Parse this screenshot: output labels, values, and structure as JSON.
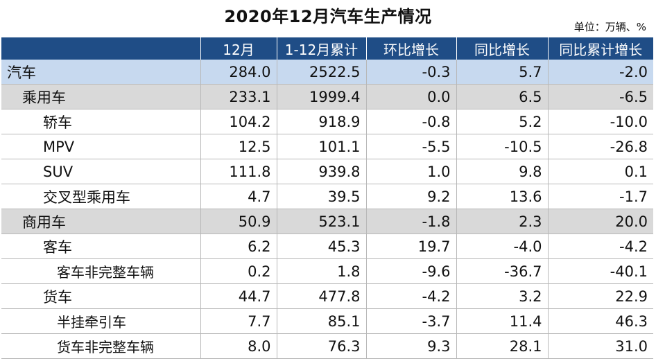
{
  "title": "2020年12月汽车生产情况",
  "unit": "单位：万辆、%",
  "headers": [
    "",
    "12月",
    "1-12月累计",
    "环比增长",
    "同比增长",
    "同比累计增长"
  ],
  "rows": [
    {
      "label": "汽车",
      "level": 0,
      "values": [
        "284.0",
        "2522.5",
        "-0.3",
        "5.7",
        "-2.0"
      ]
    },
    {
      "label": "乘用车",
      "level": 1,
      "values": [
        "233.1",
        "1999.4",
        "0.0",
        "6.5",
        "-6.5"
      ]
    },
    {
      "label": "轿车",
      "level": 2,
      "values": [
        "104.2",
        "918.9",
        "-0.8",
        "5.2",
        "-10.0"
      ]
    },
    {
      "label": "MPV",
      "level": 2,
      "values": [
        "12.5",
        "101.1",
        "-5.5",
        "-10.5",
        "-26.8"
      ]
    },
    {
      "label": "SUV",
      "level": 2,
      "values": [
        "111.8",
        "939.8",
        "1.0",
        "9.8",
        "0.1"
      ]
    },
    {
      "label": "交叉型乘用车",
      "level": 2,
      "values": [
        "4.7",
        "39.5",
        "9.2",
        "13.6",
        "-1.7"
      ]
    },
    {
      "label": "商用车",
      "level": 1,
      "values": [
        "50.9",
        "523.1",
        "-1.8",
        "2.3",
        "20.0"
      ]
    },
    {
      "label": "客车",
      "level": 2,
      "values": [
        "6.2",
        "45.3",
        "19.7",
        "-4.0",
        "-4.2"
      ]
    },
    {
      "label": "客车非完整车辆",
      "level": 3,
      "values": [
        "0.2",
        "1.8",
        "-9.6",
        "-36.7",
        "-40.1"
      ]
    },
    {
      "label": "货车",
      "level": 2,
      "values": [
        "44.7",
        "477.8",
        "-4.2",
        "3.2",
        "22.9"
      ]
    },
    {
      "label": "半挂牵引车",
      "level": 3,
      "values": [
        "7.7",
        "85.1",
        "-3.7",
        "11.4",
        "46.3"
      ]
    },
    {
      "label": "货车非完整车辆",
      "level": 3,
      "values": [
        "8.0",
        "76.3",
        "9.3",
        "28.1",
        "31.0"
      ]
    }
  ]
}
